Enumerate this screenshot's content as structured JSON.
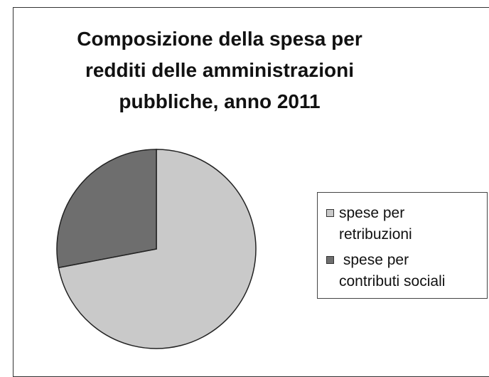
{
  "chart_data": {
    "type": "pie",
    "title_lines": [
      "Composizione della spesa per",
      "redditi delle amministrazioni",
      "pubbliche, anno 2011"
    ],
    "categories": [
      "spese per retribuzioni",
      " spese per contributi sociali"
    ],
    "values": [
      72,
      28
    ],
    "colors": [
      "#c9c9c9",
      "#6e6e6e"
    ],
    "legend": {
      "placement": "right",
      "items": [
        {
          "line1": "spese per",
          "line2": "retribuzioni"
        },
        {
          "line1": " spese per",
          "line2": "contributi sociali"
        }
      ]
    }
  }
}
